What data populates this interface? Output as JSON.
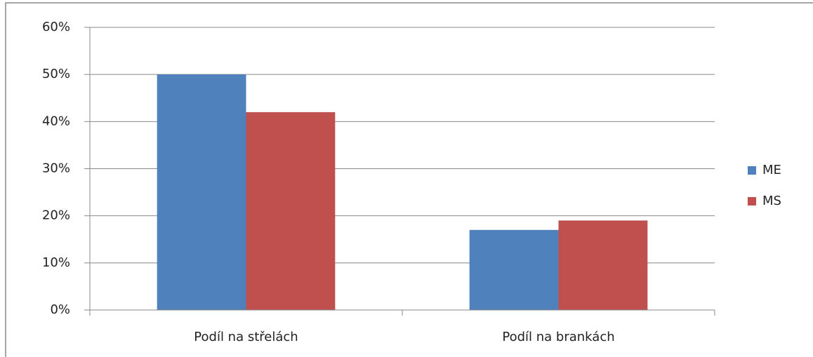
{
  "chart_data": {
    "type": "bar",
    "categories": [
      "Podíl na střelách",
      "Podíl na brankách"
    ],
    "series": [
      {
        "name": "ME",
        "color": "#4f81bd",
        "values": [
          50,
          17
        ]
      },
      {
        "name": "MS",
        "color": "#c0504d",
        "values": [
          42,
          19
        ]
      }
    ],
    "ylim": [
      0,
      60
    ],
    "yticks": [
      {
        "value": 0,
        "label": "0%"
      },
      {
        "value": 10,
        "label": "10%"
      },
      {
        "value": 20,
        "label": "20%"
      },
      {
        "value": 30,
        "label": "30%"
      },
      {
        "value": 40,
        "label": "40%"
      },
      {
        "value": 50,
        "label": "50%"
      },
      {
        "value": 60,
        "label": "60%"
      }
    ],
    "grid": true,
    "legend": "right"
  }
}
